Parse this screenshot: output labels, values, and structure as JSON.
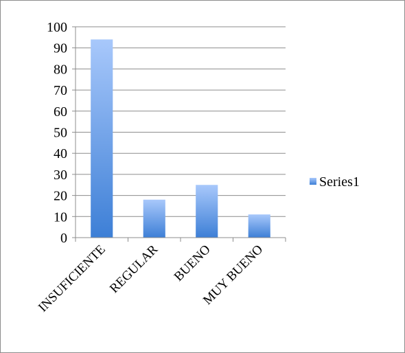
{
  "chart_data": {
    "type": "bar",
    "categories": [
      "INSUFICIENTE",
      "REGULAR",
      "BUENO",
      "MUY BUENO"
    ],
    "series": [
      {
        "name": "Series1",
        "values": [
          94,
          18,
          25,
          11
        ]
      }
    ],
    "y_ticks": [
      "0",
      "10",
      "20",
      "30",
      "40",
      "50",
      "60",
      "70",
      "80",
      "90",
      "100"
    ],
    "ylim": [
      0,
      100
    ],
    "grid": true,
    "legend_position": "right",
    "colors": {
      "bar_top": "#a8c8fb",
      "bar_bottom": "#3d7fd6",
      "grid": "#8c8c8c",
      "axis": "#8c8c8c"
    }
  }
}
